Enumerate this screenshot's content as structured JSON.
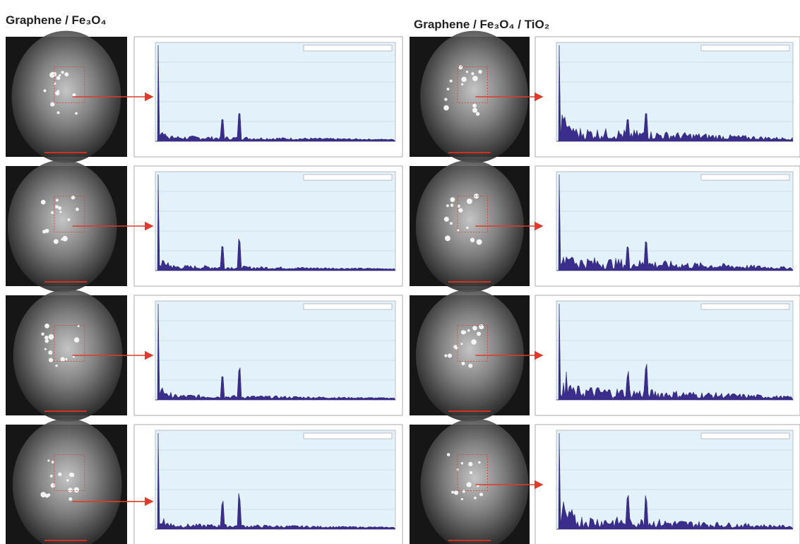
{
  "figure": {
    "columns": [
      {
        "title": "Graphene / Fe₃O₄"
      },
      {
        "title": "Graphene / Fe₃O₄ / TiO₂"
      }
    ]
  }
}
